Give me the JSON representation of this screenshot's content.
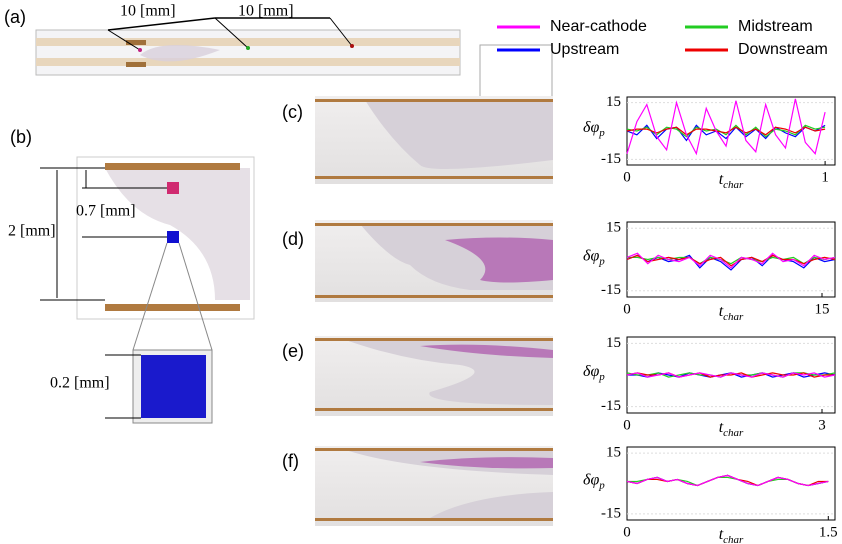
{
  "labels": {
    "a": "(a)",
    "b": "(b)",
    "c": "(c)",
    "d": "(d)",
    "e": "(e)",
    "f": "(f)",
    "dist1": "10 [mm]",
    "dist2": "10 [mm]",
    "gap": "0.7 [mm]",
    "height": "2 [mm]",
    "cube": "0.2 [mm]"
  },
  "chart_data": [
    {
      "type": "line",
      "panel": "(c)",
      "ylabel": {
        "base": "δφ",
        "sub": "p"
      },
      "xlabel": {
        "base": "t",
        "sub": "char"
      },
      "x": [
        0,
        0.05,
        0.1,
        0.15,
        0.2,
        0.25,
        0.3,
        0.35,
        0.4,
        0.45,
        0.5,
        0.55,
        0.6,
        0.65,
        0.7,
        0.75,
        0.8,
        0.85,
        0.9,
        0.95,
        1
      ],
      "xlim": [
        0,
        1.05
      ],
      "xticks": [
        0,
        1
      ],
      "ylim": [
        -18,
        18
      ],
      "yticks": [
        -15,
        15
      ],
      "series": [
        {
          "name": "Near-cathode",
          "color": "#ff00ff",
          "values": [
            -12,
            5,
            14,
            -3,
            -10,
            15,
            -2,
            -12,
            12,
            0,
            -8,
            16,
            -5,
            -11,
            14,
            -2,
            -9,
            17,
            -6,
            -12,
            10
          ]
        },
        {
          "name": "Upstream",
          "color": "#0000ff",
          "values": [
            0,
            -2,
            3,
            -4,
            1,
            2,
            -5,
            3,
            -2,
            0,
            -4,
            2,
            -3,
            1,
            -4,
            2,
            -1,
            -3,
            2,
            0,
            3
          ]
        },
        {
          "name": "Midstream",
          "color": "#22cc22",
          "values": [
            1,
            0,
            2,
            -2,
            2,
            1,
            -3,
            2,
            0,
            1,
            -2,
            3,
            -2,
            2,
            -3,
            1,
            0,
            -2,
            3,
            1,
            2
          ]
        },
        {
          "name": "Downstream",
          "color": "#ee0000",
          "values": [
            0,
            1,
            1,
            -1,
            1,
            2,
            -2,
            1,
            1,
            0,
            -1,
            2,
            -1,
            1,
            -2,
            2,
            1,
            -1,
            2,
            0,
            1
          ]
        }
      ]
    },
    {
      "type": "line",
      "panel": "(d)",
      "ylabel": {
        "base": "δφ",
        "sub": "p"
      },
      "xlabel": {
        "base": "t",
        "sub": "char"
      },
      "x": [
        0,
        0.8,
        1.6,
        2.4,
        3.2,
        4,
        4.8,
        5.6,
        6.4,
        7.2,
        8,
        8.8,
        9.6,
        10.4,
        11.2,
        12,
        12.8,
        13.6,
        14.4,
        15.2,
        16
      ],
      "xlim": [
        0,
        16
      ],
      "xticks": [
        0,
        15
      ],
      "ylim": [
        -18,
        18
      ],
      "yticks": [
        -15,
        15
      ],
      "series": [
        {
          "color": "#ff00ff",
          "values": [
            1,
            3,
            -2,
            2,
            0,
            -1,
            1,
            -3,
            2,
            0,
            -4,
            1,
            0,
            -2,
            3,
            -1,
            0,
            -3,
            2,
            0,
            1
          ]
        },
        {
          "color": "#0000ff",
          "values": [
            0,
            2,
            -1,
            1,
            -1,
            0,
            2,
            -4,
            1,
            -1,
            -5,
            0,
            1,
            -3,
            2,
            0,
            -1,
            -4,
            1,
            -1,
            0
          ]
        },
        {
          "color": "#22cc22",
          "values": [
            1,
            1,
            0,
            1,
            0,
            1,
            1,
            -2,
            1,
            0,
            -2,
            1,
            0,
            -1,
            1,
            0,
            1,
            -2,
            1,
            0,
            1
          ]
        },
        {
          "color": "#ee0000",
          "values": [
            0,
            2,
            -1,
            0,
            1,
            0,
            1,
            -2,
            0,
            1,
            -3,
            0,
            1,
            -1,
            2,
            0,
            0,
            -2,
            0,
            1,
            0
          ]
        }
      ]
    },
    {
      "type": "line",
      "panel": "(e)",
      "ylabel": {
        "base": "δφ",
        "sub": "p"
      },
      "xlabel": {
        "base": "t",
        "sub": "char"
      },
      "x": [
        0,
        0.16,
        0.32,
        0.48,
        0.64,
        0.8,
        0.96,
        1.12,
        1.28,
        1.44,
        1.6,
        1.76,
        1.92,
        2.08,
        2.24,
        2.4,
        2.56,
        2.72,
        2.88,
        3.04,
        3.2
      ],
      "xlim": [
        0,
        3.2
      ],
      "xticks": [
        0,
        3
      ],
      "ylim": [
        -18,
        18
      ],
      "yticks": [
        -15,
        15
      ],
      "series": [
        {
          "color": "#ff00ff",
          "values": [
            0,
            1,
            -1,
            0,
            1,
            -1,
            0,
            1,
            0,
            -1,
            1,
            0,
            -1,
            1,
            0,
            -1,
            1,
            0,
            1,
            -1,
            0
          ]
        },
        {
          "color": "#0000ff",
          "values": [
            0,
            0,
            -1,
            1,
            0,
            -1,
            1,
            0,
            -1,
            0,
            1,
            -1,
            0,
            1,
            -1,
            0,
            1,
            -1,
            0,
            1,
            0
          ]
        },
        {
          "color": "#22cc22",
          "values": [
            1,
            0,
            0,
            1,
            -1,
            0,
            1,
            0,
            0,
            -1,
            1,
            0,
            0,
            1,
            0,
            -1,
            1,
            1,
            0,
            0,
            1
          ]
        },
        {
          "color": "#ee0000",
          "values": [
            0,
            1,
            0,
            0,
            1,
            -1,
            0,
            1,
            -1,
            0,
            0,
            1,
            -1,
            0,
            1,
            0,
            0,
            1,
            -1,
            0,
            0
          ]
        }
      ]
    },
    {
      "type": "line",
      "panel": "(f)",
      "ylabel": {
        "base": "δφ",
        "sub": "p"
      },
      "xlabel": {
        "base": "t",
        "sub": "char"
      },
      "x": [
        0,
        0.075,
        0.15,
        0.225,
        0.3,
        0.375,
        0.45,
        0.525,
        0.6,
        0.675,
        0.75,
        0.825,
        0.9,
        0.975,
        1.05,
        1.125,
        1.2,
        1.275,
        1.35,
        1.425,
        1.5
      ],
      "xlim": [
        0,
        1.55
      ],
      "xticks": [
        0,
        1.5
      ],
      "ylim": [
        -18,
        18
      ],
      "yticks": [
        -15,
        15
      ],
      "series": [
        {
          "color": "#ff00ff",
          "values": [
            1,
            0,
            2,
            3,
            1,
            2,
            0,
            -1,
            1,
            3,
            4,
            2,
            0,
            -1,
            1,
            3,
            2,
            0,
            -1,
            0,
            1
          ]
        },
        {
          "color": "#0000ff",
          "values": [
            1,
            0,
            2,
            3,
            1,
            2,
            0,
            -1,
            1,
            3,
            4,
            2,
            0,
            -1,
            1,
            3,
            2,
            0,
            -1,
            0,
            1
          ]
        },
        {
          "color": "#22cc22",
          "values": [
            1,
            1,
            2,
            3,
            1,
            2,
            1,
            -1,
            1,
            3,
            3,
            2,
            0,
            -1,
            1,
            2,
            2,
            0,
            -1,
            0,
            1
          ]
        },
        {
          "color": "#ee0000",
          "values": [
            1,
            0,
            2,
            2,
            1,
            2,
            0,
            -1,
            1,
            3,
            4,
            2,
            1,
            -1,
            1,
            3,
            2,
            0,
            -1,
            1,
            1
          ]
        }
      ]
    }
  ]
}
